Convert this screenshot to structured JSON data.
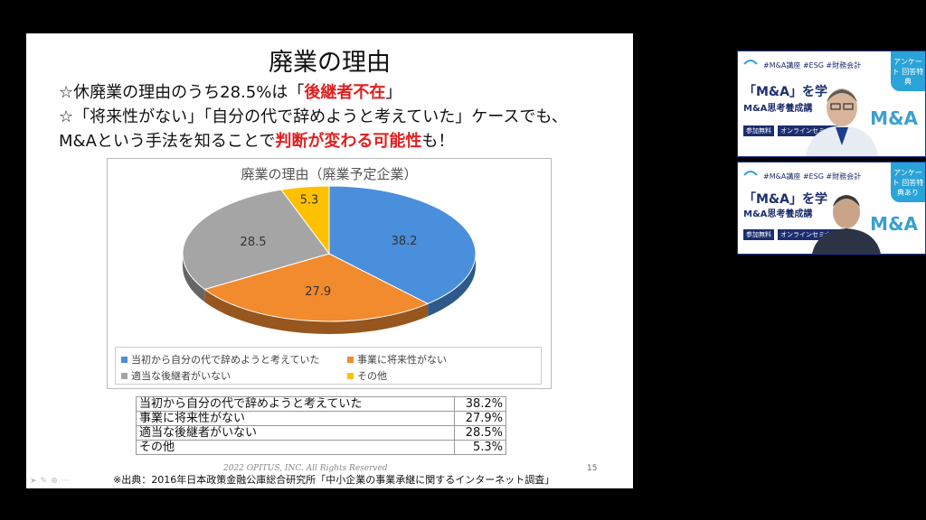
{
  "slide": {
    "title": "廃業の理由",
    "bullet1_prefix": "☆休廃業の理由のうち28.5%は「",
    "bullet1_red": "後継者不在",
    "bullet1_suffix": "」",
    "bullet2": "☆「将来性がない」「自分の代で辞めようと考えていた」ケースでも、",
    "bullet3_prefix": "M&Aという手法を知ることで",
    "bullet3_red": "判断が変わる可能性",
    "bullet3_suffix": "も！",
    "copyright": "2022 OPITUS, INC. All Rights Reserved",
    "page_number": "15",
    "source": "※出典：2016年日本政策金融公庫総合研究所「中小企業の事業承継に関するインターネット調査」"
  },
  "chart_data": {
    "type": "pie",
    "title": "廃業の理由（廃業予定企業）",
    "categories": [
      "当初から自分の代で辞めようと考えていた",
      "事業に将来性がない",
      "適当な後継者がいない",
      "その他"
    ],
    "values": [
      38.2,
      27.9,
      28.5,
      5.3
    ],
    "data_labels": [
      "38.2",
      "27.9",
      "28.5",
      "5.3"
    ],
    "colors": [
      "#4a8fdc",
      "#f28a2e",
      "#a5a5a5",
      "#ffc000"
    ],
    "legend_position": "bottom"
  },
  "table": {
    "rows": [
      {
        "label": "当初から自分の代で辞めようと考えていた",
        "value": "38.2%"
      },
      {
        "label": "事業に将来性がない",
        "value": "27.9%"
      },
      {
        "label": "適当な後継者がいない",
        "value": "28.5%"
      },
      {
        "label": "その他",
        "value": "5.3%"
      }
    ]
  },
  "video1": {
    "tags": "#M&A講座 #ESG #財務会計",
    "badge": "アンケート 回答特典",
    "headline": "「M&A」を学",
    "sub": "M&A思考養成講",
    "free": "参加無料",
    "online": "オンラインセミナー",
    "brand": "M&A"
  },
  "video2": {
    "tags": "#M&A講座 #ESG #財務会計",
    "badge": "アンケート 回答特典あり",
    "headline": "「M&A」を学",
    "sub": "M&A思考養成講",
    "free": "参加無料",
    "online": "オンラインセミナー",
    "brand": "M&A"
  }
}
